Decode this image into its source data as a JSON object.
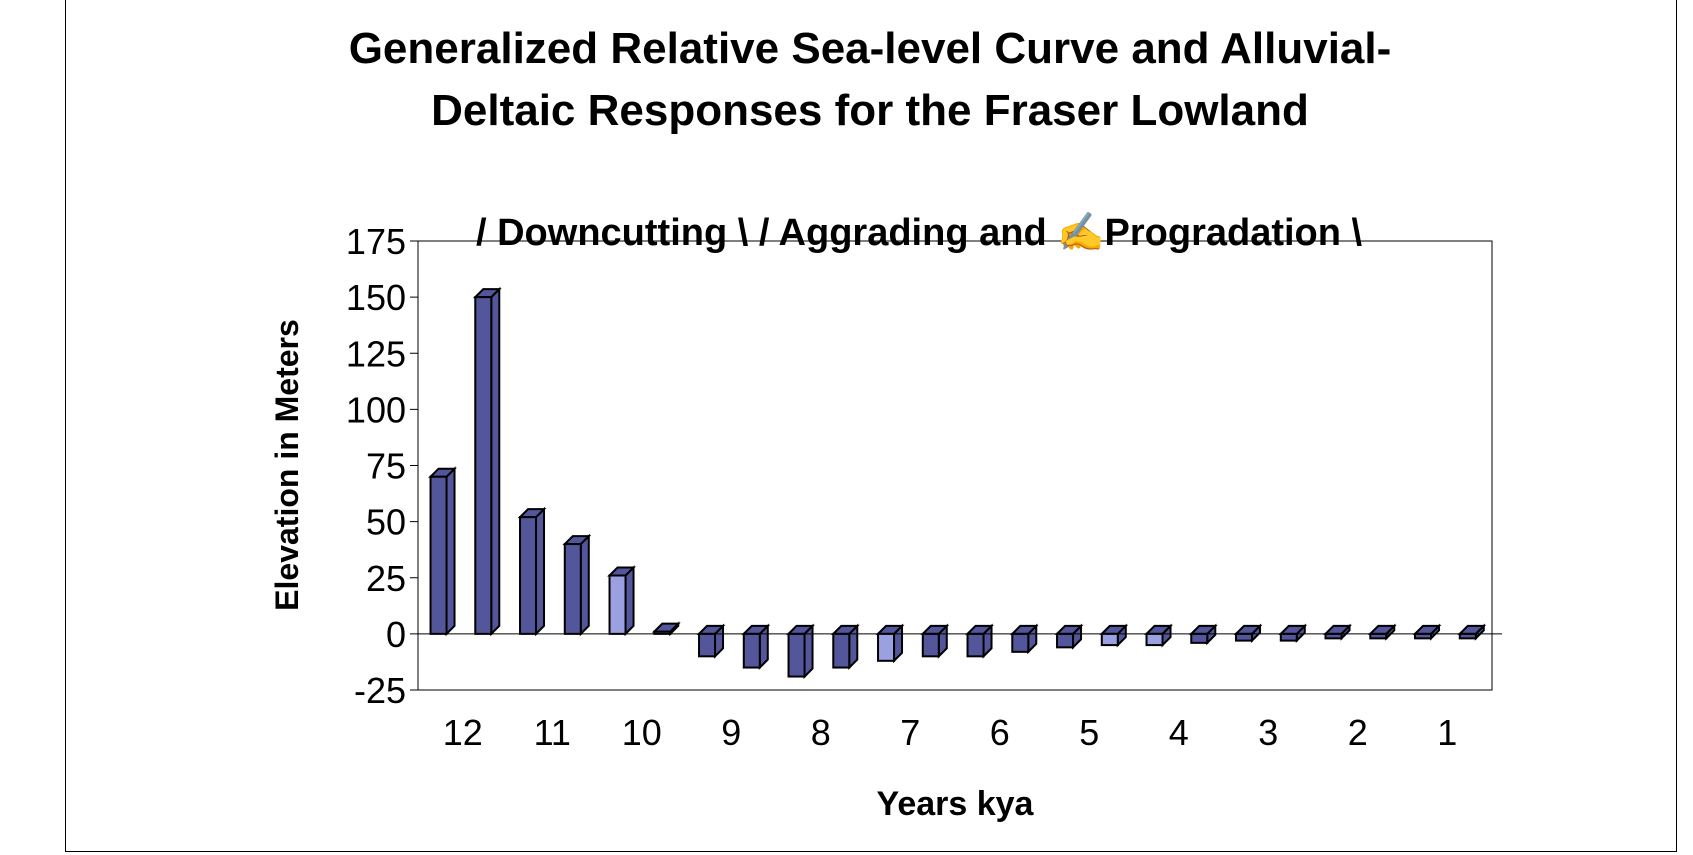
{
  "chart_data": {
    "type": "bar",
    "title_line1": "Generalized Relative Sea-level Curve and Alluvial-",
    "title_line2": "Deltaic Responses for the Fraser Lowland",
    "annotation": "/ Downcutting \\  / Aggrading and ✍Progradation \\",
    "xlabel": "Years kya",
    "ylabel": "Elevation in Meters",
    "ylim": [
      -25,
      175
    ],
    "yticks": [
      "175",
      "150",
      "125",
      "100",
      "75",
      "50",
      "25",
      "0",
      "-25"
    ],
    "xtick_labels": [
      "12",
      "11",
      "10",
      "9",
      "8",
      "7",
      "6",
      "5",
      "4",
      "3",
      "2",
      "1"
    ],
    "values": [
      70,
      150,
      52,
      40,
      26,
      1,
      -10,
      -15,
      -19,
      -15,
      -12,
      -10,
      -10,
      -8,
      -6,
      -5,
      -5,
      -4,
      -3,
      -3,
      -2,
      -2,
      -2,
      -2
    ],
    "grid": false,
    "legend": "none",
    "bar_color": "#54569c",
    "bar_color_light": "#9aa0e0"
  }
}
